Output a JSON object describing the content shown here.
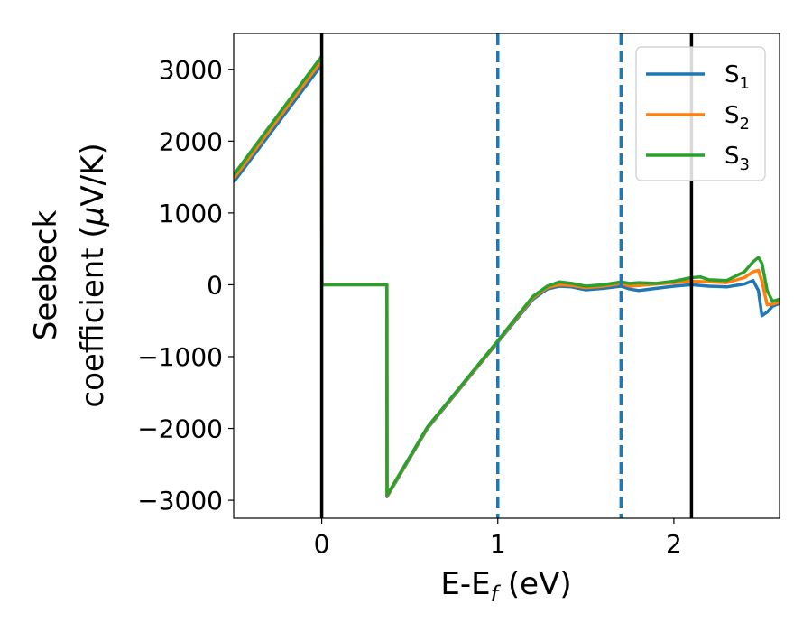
{
  "chart_data": {
    "type": "line",
    "title": "",
    "xlabel": "E-E",
    "xlabel_sub": "f",
    "xlabel_unit": " (eV)",
    "ylabel_line1": "Seebeck",
    "ylabel_line2": "coefficient  (",
    "ylabel_mu": "μ",
    "ylabel_unit": "V/K)",
    "xlim": [
      -0.5,
      2.6
    ],
    "ylim": [
      -3250,
      3500
    ],
    "xticks": [
      0,
      1,
      2
    ],
    "yticks": [
      3000,
      2000,
      1000,
      0,
      -1000,
      -2000,
      -3000
    ],
    "xtick_labels": [
      "0",
      "1",
      "2"
    ],
    "ytick_labels": [
      "3000",
      "2000",
      "1000",
      "0",
      "−1000",
      "−2000",
      "−3000"
    ],
    "legend_position": "top-right",
    "vertical_lines": [
      {
        "x": 0,
        "style": "solid",
        "color": "#000000"
      },
      {
        "x": 1.0,
        "style": "dashed",
        "color": "#1f77b4"
      },
      {
        "x": 1.7,
        "style": "dashed",
        "color": "#1f77b4"
      },
      {
        "x": 2.1,
        "style": "solid",
        "color": "#000000"
      }
    ],
    "series": [
      {
        "name": "S",
        "sub": "1",
        "color": "#1f77b4",
        "x": [
          -0.5,
          -0.001,
          0.001,
          0.37,
          0.371,
          0.6,
          0.8,
          1.0,
          1.2,
          1.28,
          1.35,
          1.42,
          1.5,
          1.6,
          1.7,
          1.75,
          1.8,
          1.9,
          2.0,
          2.1,
          2.2,
          2.3,
          2.4,
          2.45,
          2.48,
          2.5,
          2.53,
          2.56,
          2.6
        ],
        "y": [
          1430,
          3060,
          0,
          0,
          -2950,
          -2000,
          -1400,
          -800,
          -200,
          -60,
          -20,
          -30,
          -70,
          -50,
          -20,
          -60,
          -80,
          -50,
          -20,
          0,
          -20,
          -30,
          10,
          60,
          -80,
          -430,
          -380,
          -300,
          -260
        ]
      },
      {
        "name": "S",
        "sub": "2",
        "color": "#ff7f0e",
        "x": [
          -0.5,
          -0.001,
          0.001,
          0.37,
          0.371,
          0.6,
          0.8,
          1.0,
          1.2,
          1.28,
          1.35,
          1.42,
          1.5,
          1.6,
          1.7,
          1.75,
          1.8,
          1.9,
          2.0,
          2.1,
          2.2,
          2.3,
          2.4,
          2.45,
          2.48,
          2.5,
          2.53,
          2.56,
          2.6
        ],
        "y": [
          1480,
          3120,
          0,
          0,
          -2940,
          -1990,
          -1390,
          -790,
          -180,
          -40,
          0,
          -10,
          -40,
          -20,
          20,
          -20,
          -10,
          10,
          30,
          50,
          40,
          30,
          100,
          180,
          200,
          50,
          -280,
          -270,
          -240
        ]
      },
      {
        "name": "S",
        "sub": "3",
        "color": "#2ca02c",
        "x": [
          -0.5,
          -0.001,
          0.001,
          0.37,
          0.371,
          0.6,
          0.8,
          1.0,
          1.2,
          1.28,
          1.35,
          1.42,
          1.5,
          1.6,
          1.7,
          1.75,
          1.8,
          1.9,
          2.0,
          2.1,
          2.15,
          2.2,
          2.3,
          2.4,
          2.45,
          2.48,
          2.5,
          2.53,
          2.56,
          2.6
        ],
        "y": [
          1530,
          3180,
          0,
          0,
          -2930,
          -1980,
          -1380,
          -780,
          -160,
          -20,
          40,
          20,
          -20,
          0,
          40,
          20,
          30,
          20,
          50,
          100,
          110,
          70,
          60,
          180,
          320,
          380,
          300,
          -80,
          -230,
          -200
        ]
      }
    ]
  }
}
